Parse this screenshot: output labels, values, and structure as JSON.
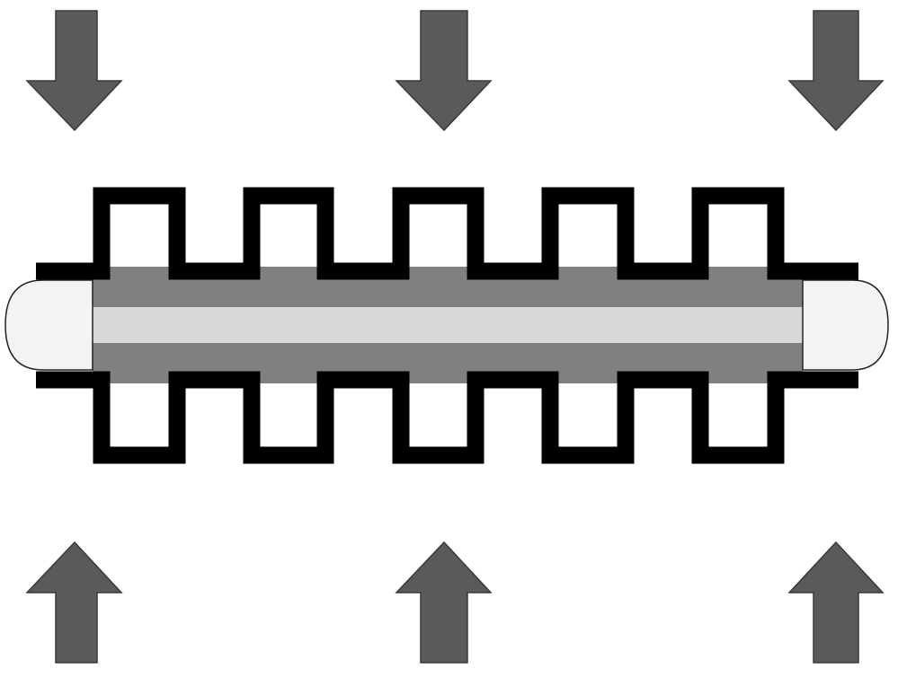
{
  "colors": {
    "background": "#ffffff",
    "arrow_fill": "#5a5a5a",
    "arrow_stroke": "#3a3a3a",
    "frame": "#000000",
    "core_outer": "#808080",
    "core_inner": "#d8d8d8",
    "end_cap_fill": "#f3f3f3",
    "end_cap_stroke": "#222222"
  },
  "arrows": {
    "top": [
      {
        "direction": "down",
        "icon": "arrow-down-icon"
      },
      {
        "direction": "down",
        "icon": "arrow-down-icon"
      },
      {
        "direction": "down",
        "icon": "arrow-down-icon"
      }
    ],
    "bottom": [
      {
        "direction": "up",
        "icon": "arrow-up-icon"
      },
      {
        "direction": "up",
        "icon": "arrow-up-icon"
      },
      {
        "direction": "up",
        "icon": "arrow-up-icon"
      }
    ]
  },
  "frame": {
    "top_teeth": 5,
    "bottom_teeth": 5
  }
}
